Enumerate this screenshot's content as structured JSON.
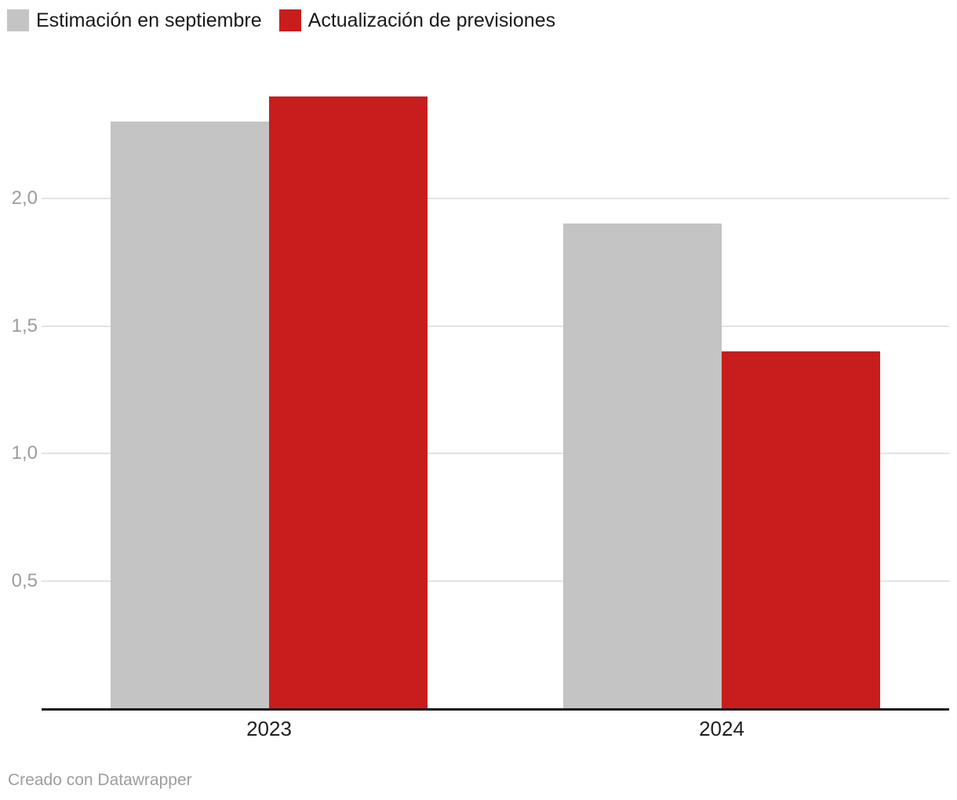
{
  "legend": {
    "items": [
      {
        "label": "Estimación en septiembre",
        "color": "#c4c4c4"
      },
      {
        "label": "Actualización de previsiones",
        "color": "#c81d1d"
      }
    ]
  },
  "chart_data": {
    "type": "bar",
    "categories": [
      "2023",
      "2024"
    ],
    "series": [
      {
        "name": "Estimación en septiembre",
        "color": "#c4c4c4",
        "values": [
          2.3,
          1.9
        ]
      },
      {
        "name": "Actualización de previsiones",
        "color": "#c81d1d",
        "values": [
          2.4,
          1.4
        ]
      }
    ],
    "title": "",
    "xlabel": "",
    "ylabel": "",
    "ylim": [
      0,
      2.5
    ],
    "y_ticks": [
      {
        "label": "2,0",
        "value": 2.0
      },
      {
        "label": "1,5",
        "value": 1.5
      },
      {
        "label": "1,0",
        "value": 1.0
      },
      {
        "label": "0,5",
        "value": 0.5
      }
    ],
    "grid": true,
    "legend_position": "top-left",
    "decimal_separator": ","
  },
  "colors": {
    "background": "#ffffff",
    "gridline": "#e3e3e3",
    "baseline": "#161616",
    "axis_tick_text": "#9c9c9c",
    "category_text": "#1f1f1f",
    "legend_text": "#1a1a1a",
    "series_gray": "#c4c4c4",
    "series_red": "#c81d1d"
  },
  "footer": {
    "credit": "Creado con Datawrapper"
  }
}
